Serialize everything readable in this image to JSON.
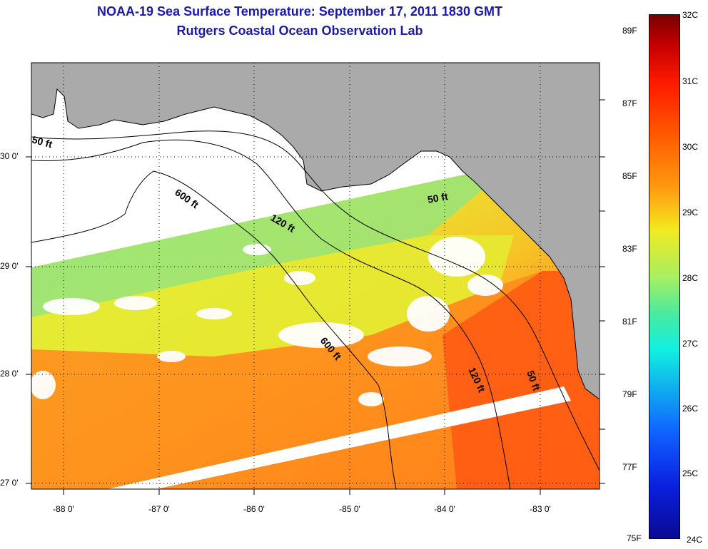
{
  "title": "NOAA-19 Sea Surface Temperature:  September 17, 2011 1830 GMT",
  "subtitle": "Rutgers Coastal Ocean Observation Lab",
  "lat_labels": [
    "30 0'",
    "29 0'",
    "28 0'",
    "27 0'"
  ],
  "lon_labels": [
    "-88 0'",
    "-87 0'",
    "-86 0'",
    "-85 0'",
    "-84 0'",
    "-83 0'"
  ],
  "contour_labels": {
    "c50a": "50 ft",
    "c600a": "600 ft",
    "c120a": "120 ft",
    "c50b": "50 ft",
    "c600b": "600 ft",
    "c120b": "120 ft",
    "c50c": "50 ft"
  },
  "colorbar": {
    "fahrenheit": [
      "89F",
      "87F",
      "85F",
      "83F",
      "81F",
      "79F",
      "77F",
      "75F"
    ],
    "celsius": [
      "32C",
      "31C",
      "30C",
      "29C",
      "28C",
      "27C",
      "26C",
      "25C",
      "24C"
    ],
    "min_c": 24,
    "max_c": 32
  },
  "colors": {
    "title": "#1a1aa6",
    "land": "#aaaaaa",
    "no_data": "#ffffff",
    "warm": "#ff6a10",
    "mid": "#e8ec30",
    "cool": "#6ee8a0"
  }
}
